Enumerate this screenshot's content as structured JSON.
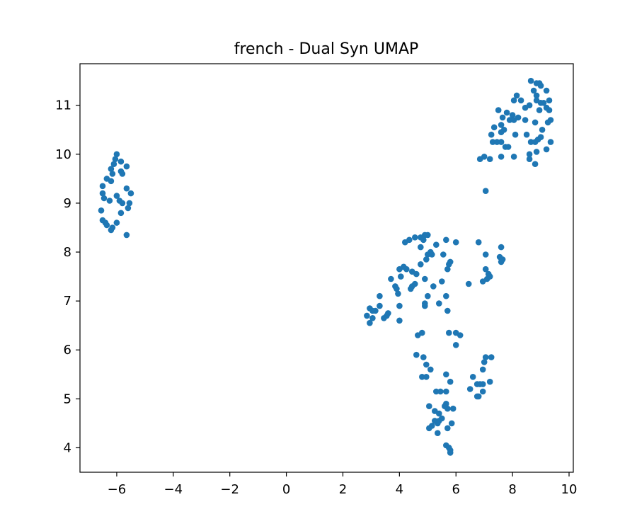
{
  "chart_data": {
    "type": "scatter",
    "title": "french - Dual Syn UMAP",
    "xlabel": "",
    "ylabel": "",
    "xlim": [
      -7.3,
      10.15
    ],
    "ylim": [
      3.5,
      11.85
    ],
    "x_ticks": [
      -6,
      -4,
      -2,
      0,
      2,
      4,
      6,
      8,
      10
    ],
    "x_tick_labels": [
      "−6",
      "−4",
      "−2",
      "0",
      "2",
      "4",
      "6",
      "8",
      "10"
    ],
    "y_ticks": [
      4,
      5,
      6,
      7,
      8,
      9,
      10,
      11
    ],
    "y_tick_labels": [
      "4",
      "5",
      "6",
      "7",
      "8",
      "9",
      "10",
      "11"
    ],
    "grid": false,
    "marker_color": "#1f77b4",
    "series": [
      {
        "points": [
          [
            -6.0,
            10.0
          ],
          [
            -6.05,
            9.9
          ],
          [
            -5.85,
            9.85
          ],
          [
            -6.1,
            9.8
          ],
          [
            -5.65,
            9.75
          ],
          [
            -6.2,
            9.7
          ],
          [
            -5.85,
            9.65
          ],
          [
            -5.8,
            9.6
          ],
          [
            -6.15,
            9.6
          ],
          [
            -6.35,
            9.5
          ],
          [
            -6.2,
            9.45
          ],
          [
            -6.5,
            9.35
          ],
          [
            -5.65,
            9.3
          ],
          [
            -5.5,
            9.2
          ],
          [
            -6.5,
            9.2
          ],
          [
            -6.0,
            9.15
          ],
          [
            -6.45,
            9.1
          ],
          [
            -5.9,
            9.05
          ],
          [
            -6.25,
            9.05
          ],
          [
            -5.8,
            9.0
          ],
          [
            -5.55,
            9.0
          ],
          [
            -5.6,
            8.9
          ],
          [
            -6.55,
            8.85
          ],
          [
            -5.85,
            8.8
          ],
          [
            -6.5,
            8.65
          ],
          [
            -6.4,
            8.6
          ],
          [
            -6.0,
            8.6
          ],
          [
            -6.35,
            8.55
          ],
          [
            -6.15,
            8.5
          ],
          [
            -6.2,
            8.45
          ],
          [
            -5.65,
            8.35
          ],
          [
            8.65,
            11.5
          ],
          [
            8.85,
            11.45
          ],
          [
            8.95,
            11.45
          ],
          [
            9.0,
            11.4
          ],
          [
            8.75,
            11.3
          ],
          [
            9.2,
            11.3
          ],
          [
            8.15,
            11.2
          ],
          [
            8.85,
            11.2
          ],
          [
            8.05,
            11.1
          ],
          [
            8.3,
            11.1
          ],
          [
            8.85,
            11.1
          ],
          [
            9.0,
            11.05
          ],
          [
            9.3,
            11.1
          ],
          [
            9.1,
            11.05
          ],
          [
            8.6,
            11.0
          ],
          [
            8.45,
            10.95
          ],
          [
            9.2,
            10.95
          ],
          [
            8.95,
            10.9
          ],
          [
            7.5,
            10.9
          ],
          [
            7.8,
            10.85
          ],
          [
            9.3,
            10.9
          ],
          [
            8.0,
            10.8
          ],
          [
            7.65,
            10.75
          ],
          [
            8.2,
            10.75
          ],
          [
            7.9,
            10.7
          ],
          [
            8.05,
            10.7
          ],
          [
            8.45,
            10.7
          ],
          [
            9.35,
            10.7
          ],
          [
            8.8,
            10.65
          ],
          [
            7.6,
            10.6
          ],
          [
            9.25,
            10.65
          ],
          [
            7.35,
            10.55
          ],
          [
            7.7,
            10.5
          ],
          [
            9.05,
            10.5
          ],
          [
            7.6,
            10.45
          ],
          [
            8.5,
            10.4
          ],
          [
            7.25,
            10.4
          ],
          [
            8.1,
            10.4
          ],
          [
            9.0,
            10.35
          ],
          [
            8.9,
            10.3
          ],
          [
            7.3,
            10.25
          ],
          [
            7.45,
            10.25
          ],
          [
            7.6,
            10.25
          ],
          [
            8.65,
            10.25
          ],
          [
            8.8,
            10.25
          ],
          [
            9.35,
            10.25
          ],
          [
            7.75,
            10.15
          ],
          [
            7.85,
            10.15
          ],
          [
            9.2,
            10.1
          ],
          [
            8.6,
            10.0
          ],
          [
            8.85,
            10.05
          ],
          [
            7.0,
            9.95
          ],
          [
            7.6,
            9.95
          ],
          [
            8.05,
            9.95
          ],
          [
            7.2,
            9.9
          ],
          [
            6.85,
            9.9
          ],
          [
            8.6,
            9.9
          ],
          [
            8.8,
            9.8
          ],
          [
            7.05,
            9.25
          ],
          [
            4.9,
            8.35
          ],
          [
            5.0,
            8.35
          ],
          [
            4.75,
            8.3
          ],
          [
            4.55,
            8.3
          ],
          [
            4.85,
            8.25
          ],
          [
            4.35,
            8.25
          ],
          [
            4.2,
            8.2
          ],
          [
            5.65,
            8.25
          ],
          [
            5.3,
            8.15
          ],
          [
            4.75,
            8.1
          ],
          [
            6.0,
            8.2
          ],
          [
            6.8,
            8.2
          ],
          [
            7.6,
            8.1
          ],
          [
            5.0,
            7.95
          ],
          [
            5.1,
            8.0
          ],
          [
            5.15,
            7.95
          ],
          [
            5.55,
            7.95
          ],
          [
            7.05,
            7.95
          ],
          [
            7.55,
            7.9
          ],
          [
            7.65,
            7.85
          ],
          [
            5.8,
            7.8
          ],
          [
            5.75,
            7.75
          ],
          [
            4.75,
            7.75
          ],
          [
            4.95,
            7.85
          ],
          [
            7.6,
            7.8
          ],
          [
            4.0,
            7.65
          ],
          [
            4.25,
            7.65
          ],
          [
            4.15,
            7.7
          ],
          [
            4.45,
            7.6
          ],
          [
            5.7,
            7.65
          ],
          [
            7.05,
            7.65
          ],
          [
            4.6,
            7.55
          ],
          [
            7.15,
            7.55
          ],
          [
            4.05,
            7.5
          ],
          [
            7.2,
            7.5
          ],
          [
            7.1,
            7.45
          ],
          [
            3.7,
            7.45
          ],
          [
            4.9,
            7.45
          ],
          [
            6.95,
            7.4
          ],
          [
            5.5,
            7.4
          ],
          [
            5.2,
            7.3
          ],
          [
            4.45,
            7.3
          ],
          [
            3.85,
            7.3
          ],
          [
            4.55,
            7.35
          ],
          [
            6.45,
            7.35
          ],
          [
            4.4,
            7.25
          ],
          [
            3.9,
            7.25
          ],
          [
            5.0,
            7.1
          ],
          [
            3.3,
            7.1
          ],
          [
            3.95,
            7.15
          ],
          [
            5.65,
            7.1
          ],
          [
            4.9,
            6.95
          ],
          [
            3.3,
            6.9
          ],
          [
            4.9,
            6.9
          ],
          [
            5.4,
            6.95
          ],
          [
            4.0,
            6.9
          ],
          [
            2.95,
            6.85
          ],
          [
            3.15,
            6.8
          ],
          [
            3.05,
            6.8
          ],
          [
            5.7,
            6.8
          ],
          [
            3.6,
            6.75
          ],
          [
            3.55,
            6.7
          ],
          [
            2.85,
            6.7
          ],
          [
            3.45,
            6.65
          ],
          [
            4.0,
            6.6
          ],
          [
            2.95,
            6.55
          ],
          [
            3.05,
            6.65
          ],
          [
            4.8,
            6.35
          ],
          [
            5.75,
            6.35
          ],
          [
            6.0,
            6.35
          ],
          [
            6.15,
            6.3
          ],
          [
            4.65,
            6.3
          ],
          [
            6.0,
            6.1
          ],
          [
            4.6,
            5.9
          ],
          [
            4.85,
            5.85
          ],
          [
            7.05,
            5.85
          ],
          [
            7.25,
            5.85
          ],
          [
            7.0,
            5.75
          ],
          [
            4.95,
            5.7
          ],
          [
            5.1,
            5.6
          ],
          [
            6.95,
            5.6
          ],
          [
            5.65,
            5.5
          ],
          [
            6.6,
            5.45
          ],
          [
            4.8,
            5.45
          ],
          [
            4.95,
            5.45
          ],
          [
            7.2,
            5.35
          ],
          [
            5.8,
            5.35
          ],
          [
            6.85,
            5.3
          ],
          [
            6.95,
            5.3
          ],
          [
            6.75,
            5.3
          ],
          [
            6.5,
            5.2
          ],
          [
            5.3,
            5.15
          ],
          [
            5.45,
            5.15
          ],
          [
            5.65,
            5.15
          ],
          [
            6.95,
            5.15
          ],
          [
            6.75,
            5.05
          ],
          [
            6.8,
            5.05
          ],
          [
            5.65,
            4.9
          ],
          [
            5.6,
            4.85
          ],
          [
            5.05,
            4.85
          ],
          [
            5.7,
            4.8
          ],
          [
            5.9,
            4.8
          ],
          [
            5.25,
            4.75
          ],
          [
            5.4,
            4.7
          ],
          [
            5.25,
            4.55
          ],
          [
            5.4,
            4.55
          ],
          [
            5.5,
            4.6
          ],
          [
            5.35,
            4.5
          ],
          [
            5.85,
            4.5
          ],
          [
            5.15,
            4.45
          ],
          [
            5.05,
            4.4
          ],
          [
            5.7,
            4.4
          ],
          [
            5.35,
            4.3
          ],
          [
            5.65,
            4.05
          ],
          [
            5.75,
            4.0
          ],
          [
            5.8,
            3.95
          ],
          [
            5.8,
            3.9
          ]
        ]
      }
    ]
  }
}
